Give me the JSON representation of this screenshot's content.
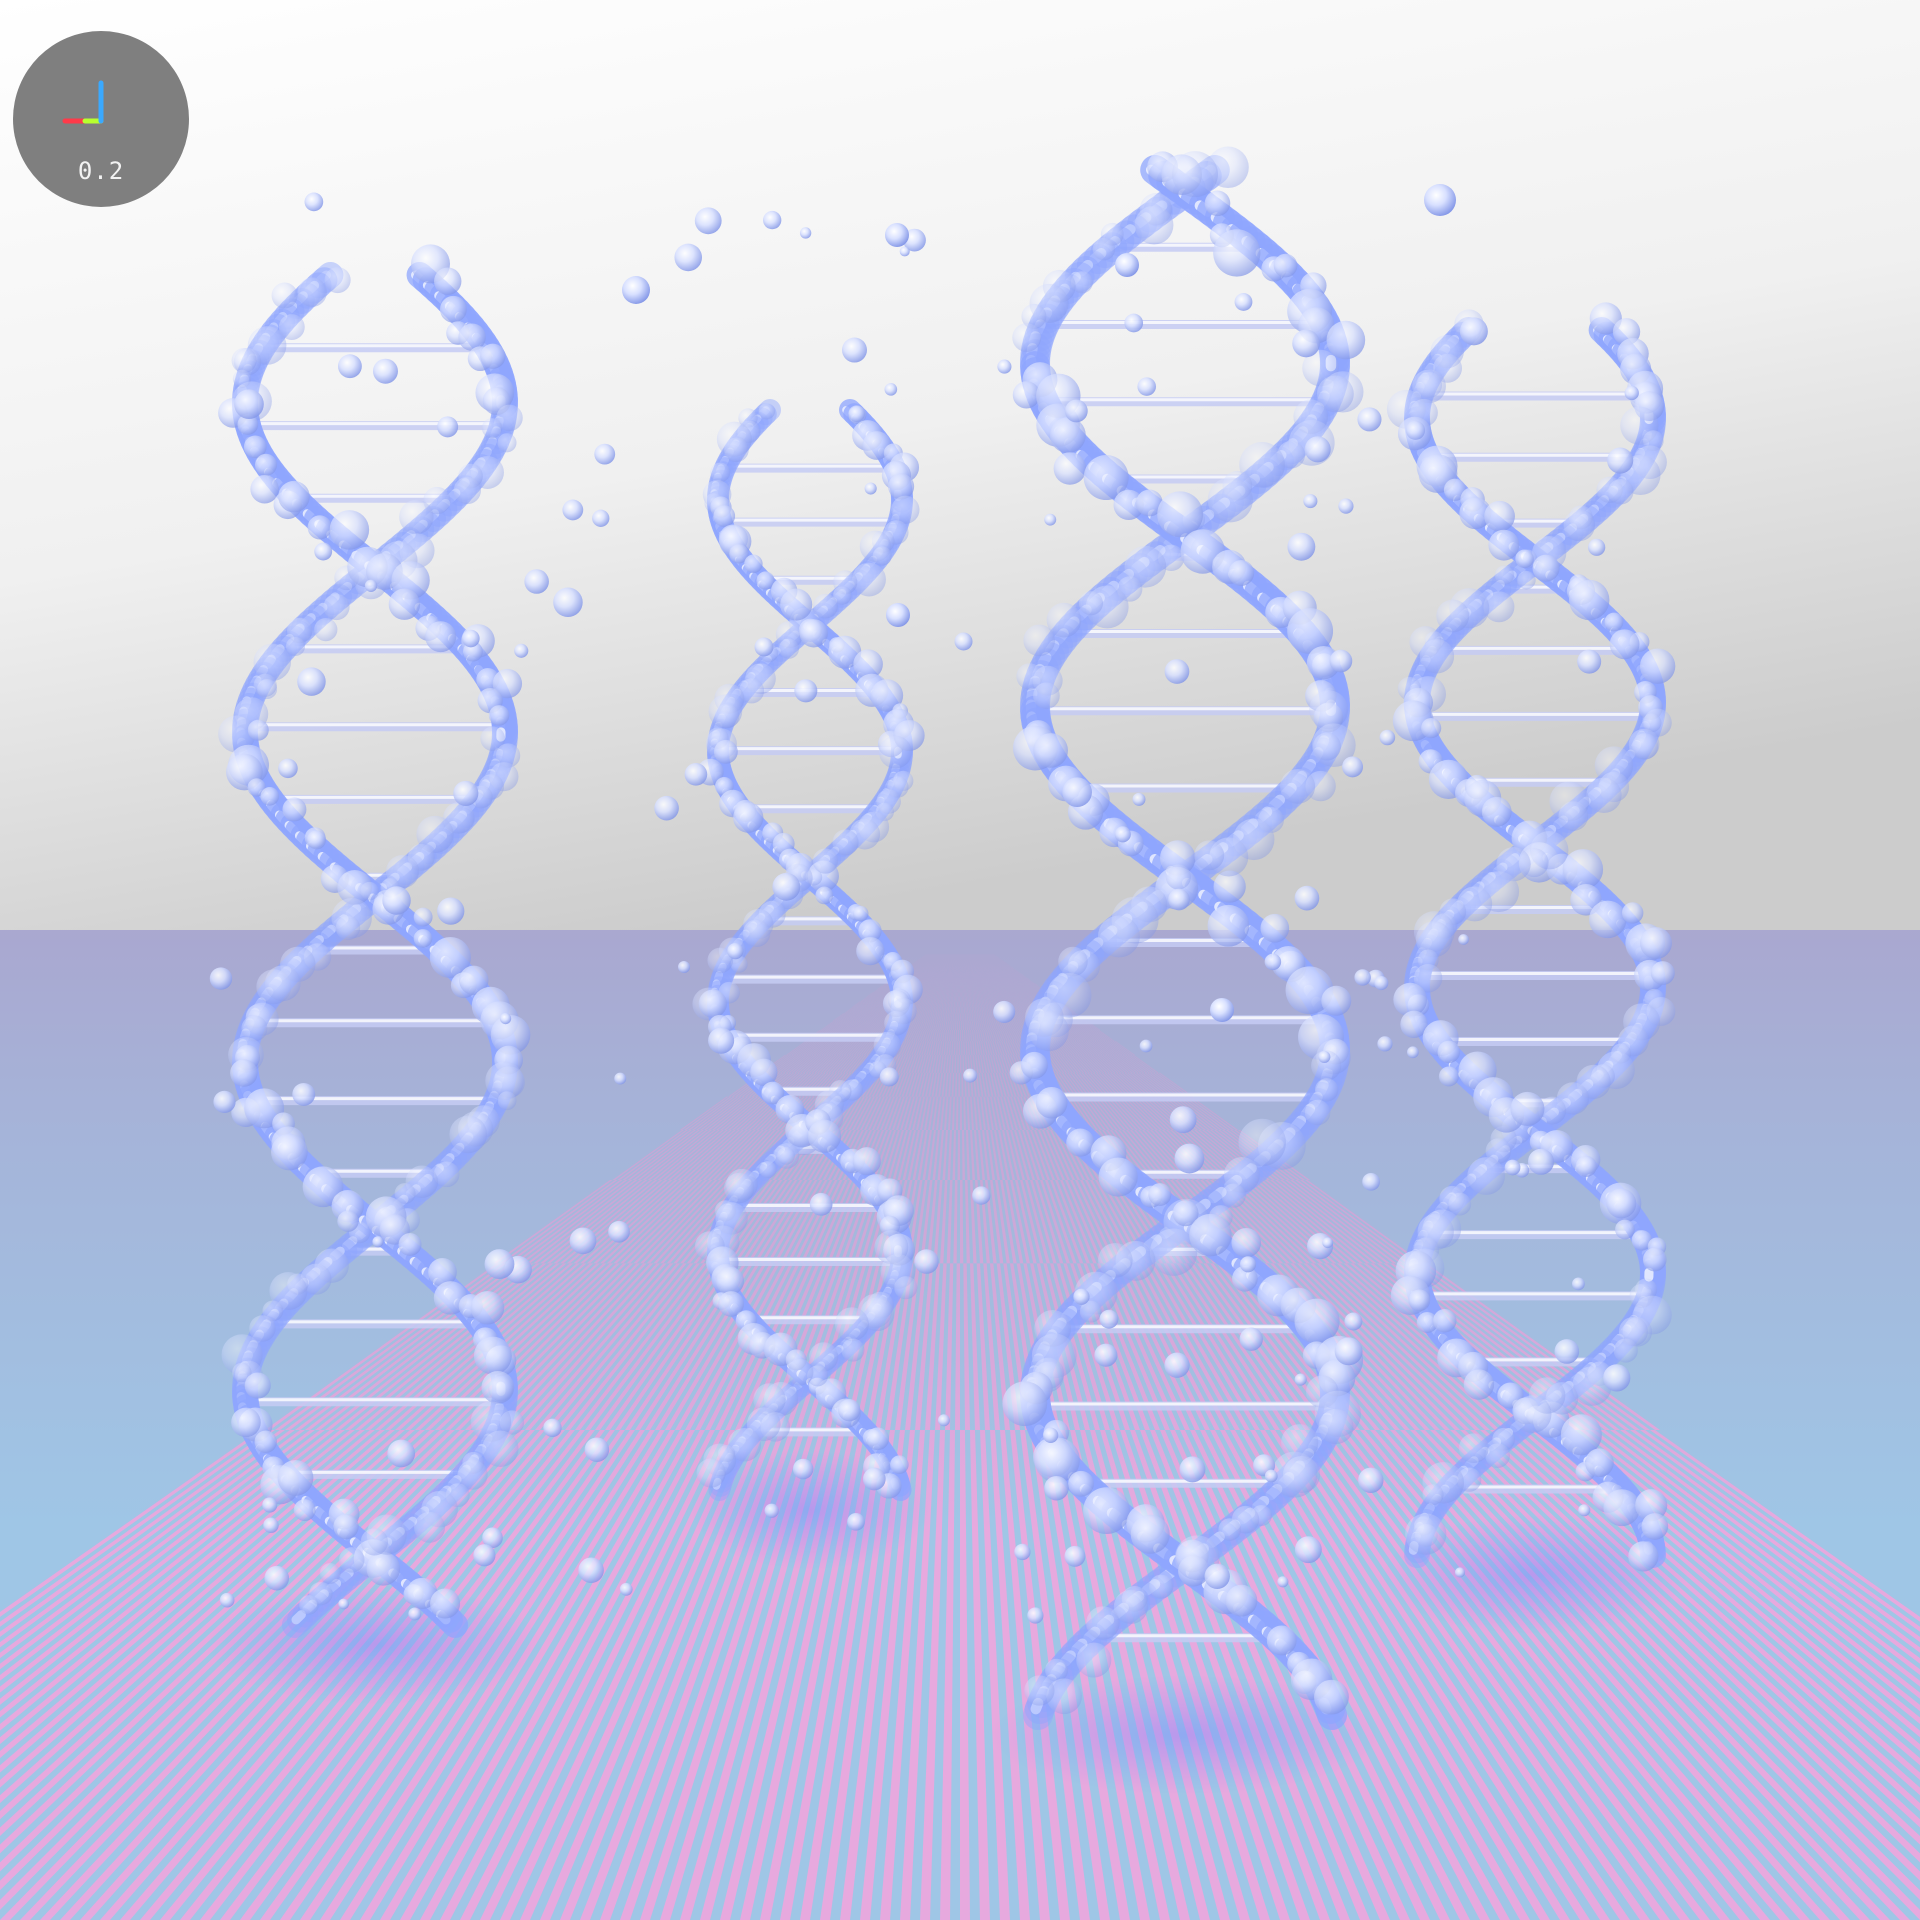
{
  "viewport": {
    "scene": "dna-helices",
    "helix_count": 4,
    "colors": {
      "sky_top": "#ffffff",
      "sky_bottom": "#cfcfcf",
      "floor_tile_a": "#e7a9de",
      "floor_tile_b": "#9fc6e6",
      "floor_haze": "#a9a6d2",
      "glass_strand": "#8fa6ff",
      "glass_highlight": "#e9eeff",
      "rung": "#c6ccf4"
    }
  },
  "view_gizmo": {
    "zoom_value": "0.2",
    "axis_colors": {
      "x": "#ff3a4a",
      "y": "#b7ff2e",
      "z": "#3aa9ff"
    }
  }
}
